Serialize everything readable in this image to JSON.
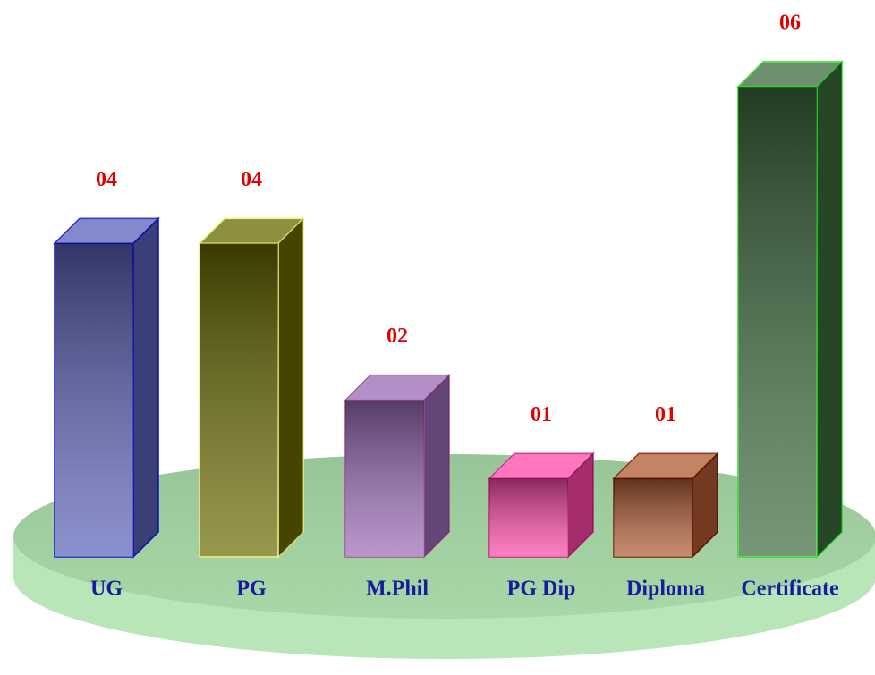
{
  "chart_data": {
    "type": "bar3d",
    "categories": [
      "UG",
      "PG",
      "M.Phil",
      "PG Dip",
      "Diploma",
      "Certificate"
    ],
    "values": [
      4,
      4,
      2,
      1,
      1,
      6
    ],
    "value_labels": [
      "04",
      "04",
      "02",
      "01",
      "01",
      "06"
    ],
    "colors": [
      "#5a62b8",
      "#6a6a00",
      "#9a6ab8",
      "#ff48a8",
      "#b05a32",
      "#3c6a3c"
    ],
    "edge_colors": [
      "#1010d0",
      "#f0f070",
      "#a04a90",
      "#c0207a",
      "#7a1a00",
      "#20e020"
    ]
  }
}
